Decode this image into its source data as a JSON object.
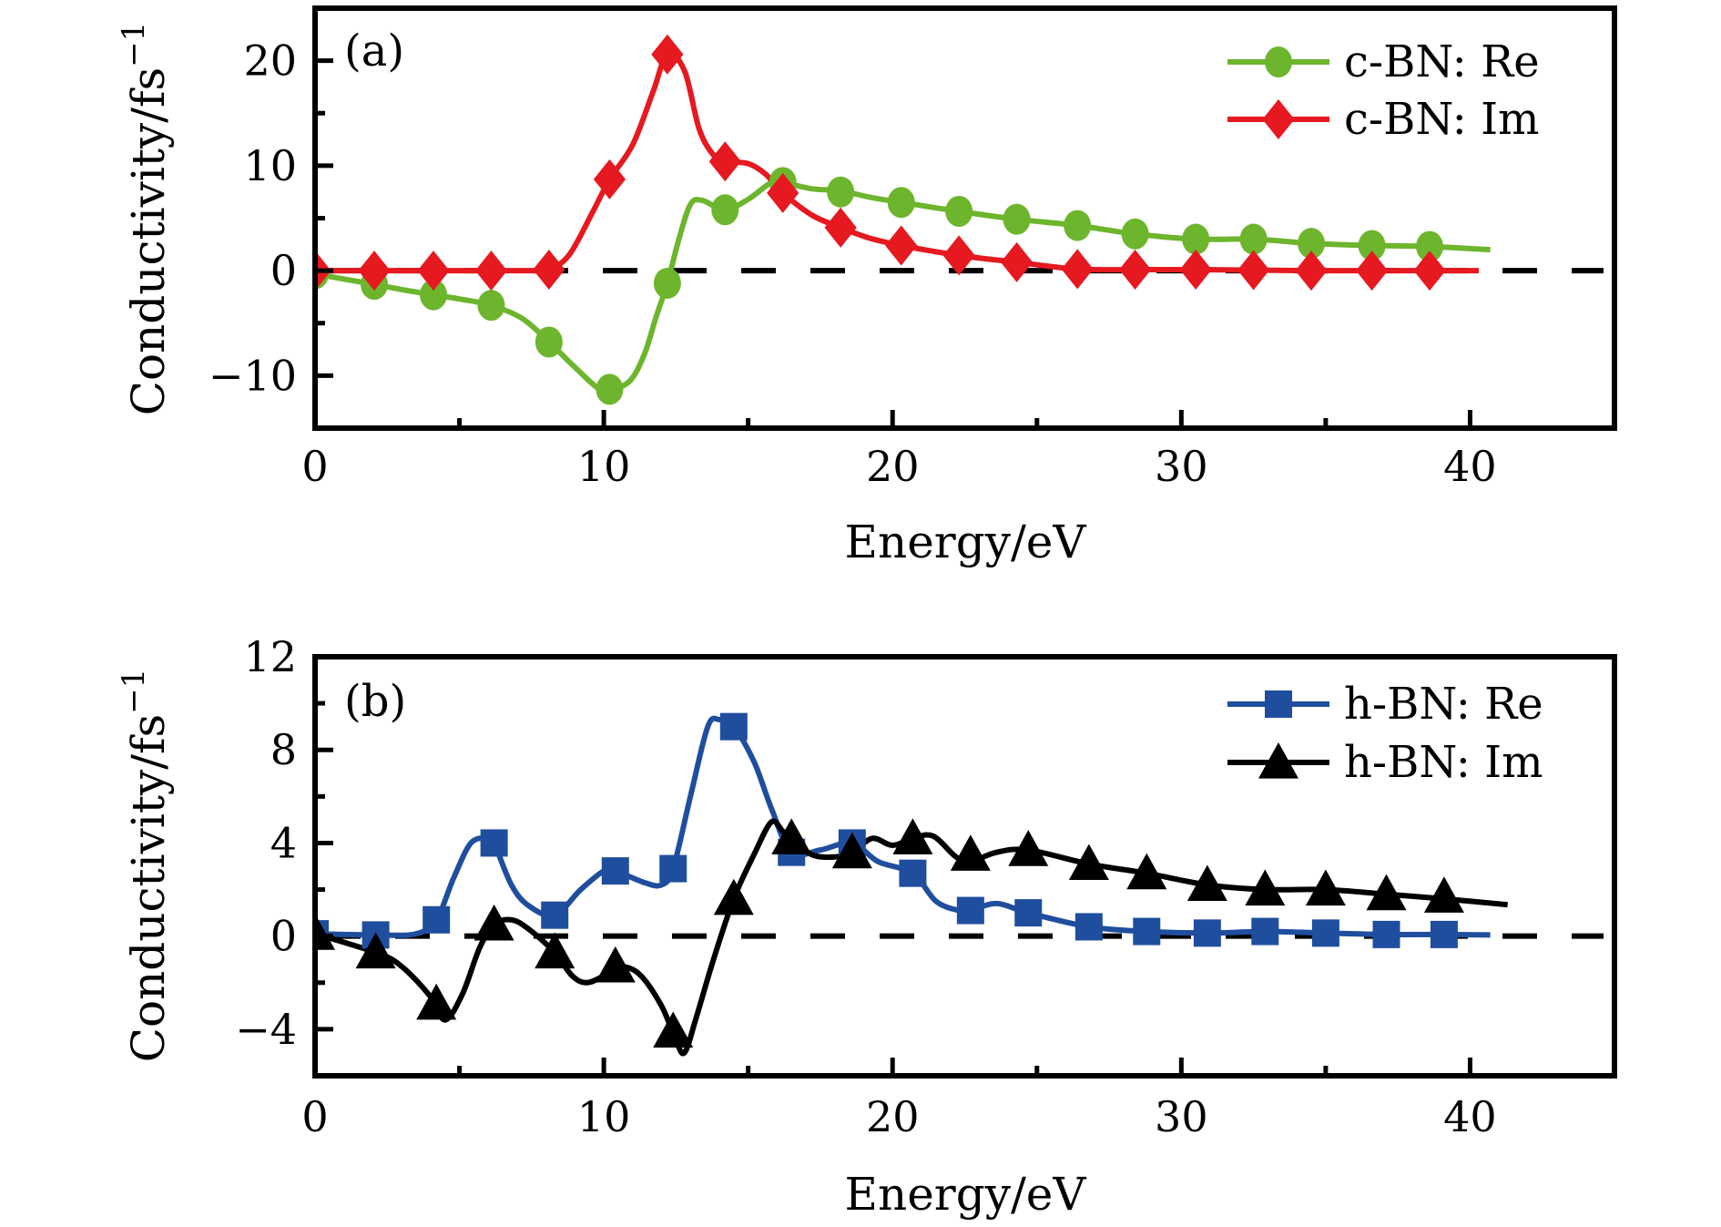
{
  "chart_data": [
    {
      "id": "a",
      "type": "line",
      "panel_label": "(a)",
      "title": "",
      "xlabel": "Energy/eV",
      "ylabel": "Conductivity/fs",
      "ylabel_superscript": "−1",
      "xlim": [
        0,
        45
      ],
      "ylim": [
        -15,
        25
      ],
      "xticks": [
        0,
        10,
        20,
        30,
        40
      ],
      "xtick_labels": [
        "0",
        "10",
        "20",
        "30",
        "40"
      ],
      "xminor": [
        5,
        15,
        25,
        35
      ],
      "yticks": [
        -10,
        0,
        10,
        20
      ],
      "ytick_labels": [
        "−10",
        "0",
        "10",
        "20"
      ],
      "yminor": [
        -5,
        5,
        15
      ],
      "reference_line": {
        "y": 0,
        "style": "dashed"
      },
      "legend_position": "top-right",
      "grid": false,
      "series": [
        {
          "name": "c-BN: Re",
          "color": "#6cb52d",
          "marker": "circle",
          "x": [
            0,
            2.05,
            4.1,
            6.1,
            8.1,
            10.2,
            12.2,
            14.2,
            16.2,
            18.2,
            20.3,
            22.3,
            24.3,
            26.4,
            28.4,
            30.5,
            32.5,
            34.5,
            36.6,
            38.6
          ],
          "y": [
            -0.3,
            -1.3,
            -2.3,
            -3.3,
            -6.8,
            -11.3,
            -1.2,
            5.8,
            8.4,
            7.5,
            6.5,
            5.65,
            4.9,
            4.3,
            3.5,
            3.0,
            3.0,
            2.6,
            2.4,
            2.3
          ],
          "curve": [
            [
              0,
              -0.3
            ],
            [
              1,
              -0.8
            ],
            [
              2.05,
              -1.3
            ],
            [
              3,
              -1.8
            ],
            [
              4.1,
              -2.3
            ],
            [
              5,
              -2.7
            ],
            [
              6.1,
              -3.3
            ],
            [
              7.2,
              -4.6
            ],
            [
              8.1,
              -6.8
            ],
            [
              9,
              -9.2
            ],
            [
              9.8,
              -11.2
            ],
            [
              10.2,
              -11.4
            ],
            [
              10.9,
              -10.5
            ],
            [
              11.4,
              -8
            ],
            [
              11.8,
              -4.5
            ],
            [
              12.2,
              -1.2
            ],
            [
              12.6,
              3
            ],
            [
              13,
              6.3
            ],
            [
              13.4,
              6.7
            ],
            [
              14.2,
              5.8
            ],
            [
              15,
              6.8
            ],
            [
              15.8,
              8.4
            ],
            [
              16.2,
              8.4
            ],
            [
              17.2,
              7.8
            ],
            [
              18.2,
              7.6
            ],
            [
              19.2,
              7.0
            ],
            [
              20.3,
              6.5
            ],
            [
              22.3,
              5.65
            ],
            [
              24.3,
              4.9
            ],
            [
              26.4,
              4.3
            ],
            [
              28.4,
              3.5
            ],
            [
              30.5,
              3.0
            ],
            [
              32.5,
              3.0
            ],
            [
              34.5,
              2.6
            ],
            [
              36.6,
              2.4
            ],
            [
              38.6,
              2.3
            ],
            [
              40.7,
              2.0
            ]
          ]
        },
        {
          "name": "c-BN: Im",
          "color": "#e5191f",
          "marker": "diamond",
          "x": [
            0,
            2.05,
            4.1,
            6.1,
            8.1,
            10.2,
            12.2,
            14.2,
            16.2,
            18.2,
            20.3,
            22.3,
            24.3,
            26.4,
            28.4,
            30.5,
            32.5,
            34.5,
            36.6,
            38.6
          ],
          "y": [
            0,
            0,
            0,
            0,
            0.1,
            8.7,
            20.6,
            10.4,
            7.4,
            4.1,
            2.4,
            1.45,
            0.8,
            0.15,
            0.1,
            0.1,
            0.05,
            0,
            0,
            0
          ],
          "curve": [
            [
              0,
              0
            ],
            [
              2.05,
              0
            ],
            [
              4.1,
              0
            ],
            [
              6.1,
              0
            ],
            [
              7.5,
              0
            ],
            [
              8.1,
              0.1
            ],
            [
              8.8,
              1.5
            ],
            [
              9.6,
              5.5
            ],
            [
              10.2,
              8.7
            ],
            [
              11,
              12
            ],
            [
              11.7,
              17
            ],
            [
              12.2,
              20.6
            ],
            [
              12.8,
              19
            ],
            [
              13.3,
              13.5
            ],
            [
              13.8,
              11
            ],
            [
              14.2,
              10.4
            ],
            [
              15,
              10.2
            ],
            [
              15.6,
              9.2
            ],
            [
              16.2,
              7.4
            ],
            [
              17.2,
              5.3
            ],
            [
              18.2,
              4.1
            ],
            [
              19.2,
              3.1
            ],
            [
              20.3,
              2.4
            ],
            [
              22.3,
              1.45
            ],
            [
              24.3,
              0.8
            ],
            [
              26.4,
              0.15
            ],
            [
              28.4,
              0.1
            ],
            [
              30.5,
              0.1
            ],
            [
              32.5,
              0.05
            ],
            [
              34.5,
              0
            ],
            [
              36.6,
              0
            ],
            [
              38.6,
              0
            ],
            [
              40.3,
              0
            ]
          ]
        }
      ]
    },
    {
      "id": "b",
      "type": "line",
      "panel_label": "(b)",
      "title": "",
      "xlabel": "Energy/eV",
      "ylabel": "Conductivity/fs",
      "ylabel_superscript": "−1",
      "xlim": [
        0,
        45
      ],
      "ylim": [
        -6,
        12
      ],
      "xticks": [
        0,
        10,
        20,
        30,
        40
      ],
      "xtick_labels": [
        "0",
        "10",
        "20",
        "30",
        "40"
      ],
      "xminor": [
        5,
        15,
        25,
        35
      ],
      "yticks": [
        -4,
        0,
        4,
        8,
        12
      ],
      "ytick_labels": [
        "−4",
        "0",
        "4",
        "8",
        "12"
      ],
      "yminor": [
        -2,
        2,
        6,
        10
      ],
      "reference_line": {
        "y": 0,
        "style": "dashed"
      },
      "legend_position": "top-right",
      "grid": false,
      "series": [
        {
          "name": "h-BN: Re",
          "color": "#1f4e9e",
          "marker": "square",
          "x": [
            0,
            2.1,
            4.2,
            6.2,
            8.3,
            10.4,
            12.4,
            14.5,
            16.5,
            18.6,
            20.7,
            22.7,
            24.7,
            26.8,
            28.8,
            30.9,
            32.9,
            35.0,
            37.1,
            39.1
          ],
          "y": [
            0.1,
            0.05,
            0.7,
            4.0,
            0.9,
            2.8,
            2.9,
            9.0,
            3.6,
            4.0,
            2.7,
            1.1,
            1.0,
            0.4,
            0.2,
            0.13,
            0.2,
            0.13,
            0.07,
            0.07
          ],
          "curve": [
            [
              0,
              0.1
            ],
            [
              2.1,
              0.05
            ],
            [
              3.5,
              0.1
            ],
            [
              4.2,
              0.7
            ],
            [
              4.8,
              2.5
            ],
            [
              5.4,
              4.0
            ],
            [
              6.0,
              4.2
            ],
            [
              6.2,
              4.0
            ],
            [
              6.8,
              2.2
            ],
            [
              7.4,
              1.3
            ],
            [
              8.3,
              0.9
            ],
            [
              9.2,
              2.0
            ],
            [
              10.0,
              2.8
            ],
            [
              10.4,
              2.8
            ],
            [
              11.4,
              2.3
            ],
            [
              12.0,
              2.2
            ],
            [
              12.4,
              2.9
            ],
            [
              13.0,
              6.0
            ],
            [
              13.6,
              9.0
            ],
            [
              14.0,
              9.3
            ],
            [
              14.5,
              9.0
            ],
            [
              15.2,
              7.5
            ],
            [
              15.8,
              5.5
            ],
            [
              16.5,
              3.6
            ],
            [
              17.5,
              3.7
            ],
            [
              18.6,
              4.0
            ],
            [
              19.5,
              3.2
            ],
            [
              20.7,
              2.7
            ],
            [
              21.5,
              1.5
            ],
            [
              22.3,
              1.1
            ],
            [
              22.7,
              1.1
            ],
            [
              23.6,
              1.4
            ],
            [
              24.7,
              1.0
            ],
            [
              26.8,
              0.4
            ],
            [
              28.8,
              0.2
            ],
            [
              30.9,
              0.13
            ],
            [
              32.9,
              0.2
            ],
            [
              35.0,
              0.13
            ],
            [
              37.1,
              0.07
            ],
            [
              39.1,
              0.07
            ],
            [
              40.7,
              0.05
            ]
          ]
        },
        {
          "name": "h-BN: Im",
          "color": "#000000",
          "marker": "triangle",
          "x": [
            0,
            2.1,
            4.2,
            6.2,
            8.3,
            10.4,
            12.4,
            14.5,
            16.5,
            18.6,
            20.7,
            22.7,
            24.7,
            26.8,
            28.8,
            30.9,
            32.9,
            35.0,
            37.1,
            39.1
          ],
          "y": [
            0.1,
            -0.7,
            -2.9,
            0.5,
            -0.7,
            -1.3,
            -4.1,
            1.6,
            4.2,
            3.6,
            4.2,
            3.5,
            3.7,
            3.1,
            2.7,
            2.2,
            2.0,
            2.0,
            1.8,
            1.7
          ],
          "curve": [
            [
              0,
              0.1
            ],
            [
              2.1,
              -0.7
            ],
            [
              3.0,
              -1.3
            ],
            [
              4.0,
              -2.6
            ],
            [
              4.5,
              -3.6
            ],
            [
              5.1,
              -2.5
            ],
            [
              5.7,
              -0.5
            ],
            [
              6.2,
              0.5
            ],
            [
              6.8,
              0.7
            ],
            [
              7.4,
              0.3
            ],
            [
              8.3,
              -0.7
            ],
            [
              8.9,
              -1.7
            ],
            [
              9.4,
              -2.0
            ],
            [
              10.0,
              -1.7
            ],
            [
              10.4,
              -1.3
            ],
            [
              11.2,
              -1.6
            ],
            [
              12.0,
              -3.0
            ],
            [
              12.5,
              -4.5
            ],
            [
              12.8,
              -5.0
            ],
            [
              13.2,
              -3.5
            ],
            [
              13.8,
              -1.0
            ],
            [
              14.5,
              1.6
            ],
            [
              15.2,
              3.5
            ],
            [
              15.8,
              4.9
            ],
            [
              16.2,
              4.5
            ],
            [
              16.5,
              4.2
            ],
            [
              17.2,
              3.5
            ],
            [
              18.0,
              3.4
            ],
            [
              18.6,
              3.6
            ],
            [
              19.3,
              4.2
            ],
            [
              20.0,
              3.9
            ],
            [
              20.7,
              4.2
            ],
            [
              21.4,
              4.3
            ],
            [
              22.2,
              3.4
            ],
            [
              22.7,
              3.2
            ],
            [
              23.6,
              3.6
            ],
            [
              24.7,
              3.7
            ],
            [
              26.8,
              3.1
            ],
            [
              28.8,
              2.7
            ],
            [
              30.9,
              2.2
            ],
            [
              32.9,
              2.0
            ],
            [
              35.0,
              2.0
            ],
            [
              37.1,
              1.8
            ],
            [
              39.1,
              1.6
            ],
            [
              41.3,
              1.35
            ]
          ]
        }
      ]
    }
  ]
}
